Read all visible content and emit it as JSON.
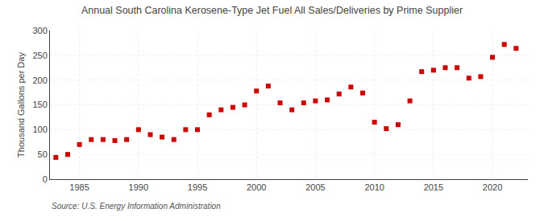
{
  "chart_data": {
    "type": "scatter",
    "title": "Annual South Carolina Kerosene-Type Jet Fuel All Sales/Deliveries by Prime Supplier",
    "ylabel": "Thousand Gallons per Day",
    "source": "Source: U.S. Energy Information Administration",
    "x": [
      1983,
      1984,
      1985,
      1986,
      1987,
      1988,
      1989,
      1990,
      1991,
      1992,
      1993,
      1994,
      1995,
      1996,
      1997,
      1998,
      1999,
      2000,
      2001,
      2002,
      2003,
      2004,
      2005,
      2006,
      2007,
      2008,
      2009,
      2010,
      2011,
      2012,
      2013,
      2014,
      2015,
      2016,
      2017,
      2018,
      2019,
      2020,
      2021,
      2022
    ],
    "values": [
      44,
      50,
      70,
      80,
      80,
      78,
      80,
      100,
      90,
      85,
      80,
      100,
      100,
      130,
      140,
      145,
      150,
      178,
      188,
      154,
      140,
      154,
      158,
      160,
      172,
      186,
      174,
      115,
      102,
      110,
      158,
      217,
      220,
      225,
      225,
      204,
      207,
      246,
      272,
      264
    ],
    "color": "#cc0000",
    "marker": "square",
    "xlim": [
      1982.5,
      2023
    ],
    "ylim": [
      0,
      300
    ],
    "xticks": [
      1985,
      1990,
      1995,
      2000,
      2005,
      2010,
      2015,
      2020
    ],
    "yticks": [
      0,
      50,
      100,
      150,
      200,
      250,
      300
    ],
    "grid": true
  }
}
